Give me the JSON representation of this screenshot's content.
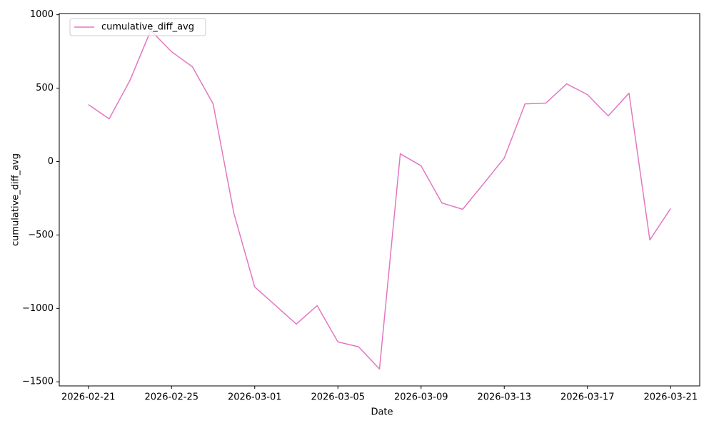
{
  "chart_data": {
    "type": "line",
    "x_label": "Date",
    "y_label": "cumulative_diff_avg",
    "x": [
      "2026-02-21",
      "2026-02-22",
      "2026-02-23",
      "2026-02-24",
      "2026-02-25",
      "2026-02-26",
      "2026-02-27",
      "2026-02-28",
      "2026-03-01",
      "2026-03-02",
      "2026-03-03",
      "2026-03-04",
      "2026-03-05",
      "2026-03-06",
      "2026-03-07",
      "2026-03-08",
      "2026-03-09",
      "2026-03-10",
      "2026-03-11",
      "2026-03-12",
      "2026-03-13",
      "2026-03-14",
      "2026-03-15",
      "2026-03-16",
      "2026-03-17",
      "2026-03-18",
      "2026-03-19",
      "2026-03-20",
      "2026-03-21"
    ],
    "series": [
      {
        "name": "cumulative_diff_avg",
        "color": "#e377c2",
        "values": [
          388,
          291,
          553,
          893,
          748,
          646,
          393,
          -354,
          -854,
          -980,
          -1107,
          -981,
          -1228,
          -1262,
          -1413,
          53,
          -29,
          -282,
          -325,
          -152,
          24,
          393,
          398,
          529,
          456,
          311,
          466,
          -534,
          -320
        ]
      }
    ],
    "xlim": [
      "2026-02-19T14:24",
      "2026-03-22T09:36"
    ],
    "xticks": [
      "2026-02-21",
      "2026-02-25",
      "2026-03-01",
      "2026-03-05",
      "2026-03-09",
      "2026-03-13",
      "2026-03-17",
      "2026-03-21"
    ],
    "ylim": [
      -1528,
      1008
    ],
    "yticks": [
      {
        "value": -1500,
        "label": "−1500"
      },
      {
        "value": -1000,
        "label": "−1000"
      },
      {
        "value": -500,
        "label": "−500"
      },
      0,
      500,
      1000
    ],
    "legend": "upper left",
    "grid": false
  }
}
